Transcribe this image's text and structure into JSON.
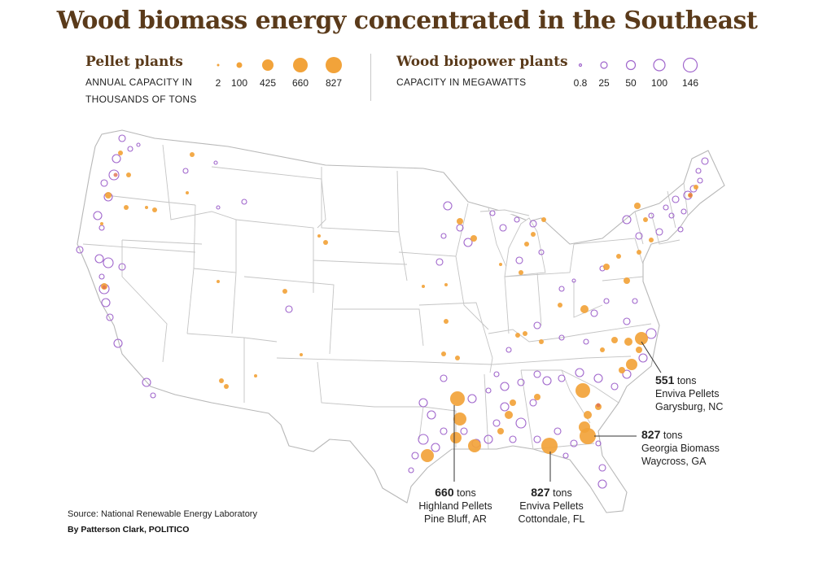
{
  "title": "Wood biomass energy concentrated in the Southeast",
  "legend": {
    "pellet": {
      "heading": "Pellet plants",
      "sub_line1": "ANNUAL CAPACITY IN",
      "sub_line2": "THOUSANDS OF TONS",
      "values": [
        "2",
        "100",
        "425",
        "660",
        "827"
      ],
      "color": "#f2a33a"
    },
    "biopower": {
      "heading": "Wood biopower plants",
      "sub_line1": "CAPACITY IN MEGAWATTS",
      "values": [
        "0.8",
        "25",
        "50",
        "100",
        "146"
      ],
      "color": "#a066cc"
    }
  },
  "callouts": [
    {
      "value": "551",
      "unit": "tons",
      "name": "Enviva Pellets",
      "place": "Garysburg, NC"
    },
    {
      "value": "827",
      "unit": "tons",
      "name": "Georgia Biomass",
      "place": "Waycross, GA"
    },
    {
      "value": "660",
      "unit": "tons",
      "name": "Highland Pellets",
      "place": "Pine Bluff, AR"
    },
    {
      "value": "827",
      "unit": "tons",
      "name": "Enviva Pellets",
      "place": "Cottondale, FL"
    }
  ],
  "source": "Source: National Renewable Energy Laboratory",
  "byline": "By Patterson Clark, POLITICO",
  "colors": {
    "title": "#5a3a1a",
    "pellet": "#f2a33a",
    "biopower": "#a066cc",
    "border": "#b8b8b8"
  }
}
